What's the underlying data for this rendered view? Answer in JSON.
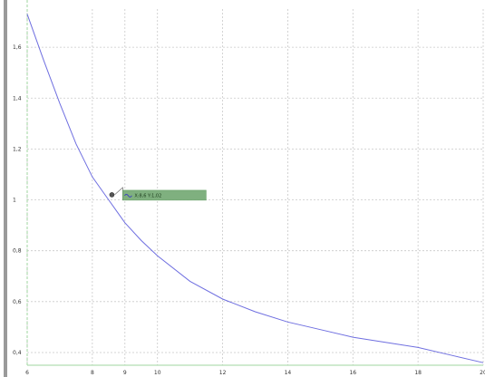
{
  "chart_data": {
    "type": "line",
    "title": "",
    "xlabel": "",
    "ylabel": "",
    "xlim": [
      6,
      20
    ],
    "ylim": [
      0.35,
      1.75
    ],
    "grid": true,
    "x_ticks": [
      "6",
      "8",
      "9",
      "10",
      "12",
      "14",
      "16",
      "18",
      "20"
    ],
    "x_tick_values": [
      6,
      8,
      9,
      10,
      12,
      14,
      16,
      18,
      20
    ],
    "y_ticks": [
      "0,4",
      "0,6",
      "0,8",
      "1",
      "1,2",
      "1,4",
      "1,6"
    ],
    "y_tick_values": [
      0.4,
      0.6,
      0.8,
      1.0,
      1.2,
      1.4,
      1.6
    ],
    "series": [
      {
        "name": "",
        "color": "#6f6fe0",
        "x": [
          6.0,
          6.5,
          7.0,
          7.5,
          8.0,
          8.5,
          9.0,
          9.5,
          10.0,
          11.0,
          12.0,
          13.0,
          14.0,
          15.0,
          16.0,
          17.0,
          18.0,
          19.0,
          20.0
        ],
        "y": [
          1.73,
          1.55,
          1.38,
          1.22,
          1.09,
          1.0,
          0.91,
          0.84,
          0.78,
          0.68,
          0.61,
          0.56,
          0.52,
          0.49,
          0.46,
          0.44,
          0.42,
          0.39,
          0.36
        ]
      }
    ],
    "tooltip": {
      "x": 8.6,
      "y": 1.02,
      "text": "X:8,6 Y:1,02",
      "bg_color": "#7fb07f"
    }
  }
}
